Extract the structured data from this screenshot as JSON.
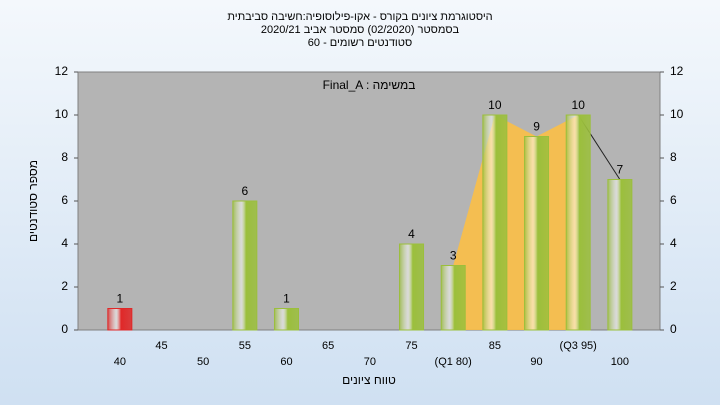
{
  "chart_data": {
    "type": "bar",
    "title": "היסטוגרמת ציונים בקורס - אקו-פילוסופיה:חשיבה סביבתית",
    "subtitle": "בסמסטר  (02/2020)  סמסטר אביב 2020/21",
    "subtitle2": "סטודנטים רשומים - 60",
    "annotation": "Final_A : במשימה",
    "xlabel": "טווח ציונים",
    "ylabel": "מספר סטודנטים",
    "categories": [
      "40",
      "45",
      "50",
      "55",
      "60",
      "65",
      "70",
      "75",
      "(Q1 80)",
      "85",
      "90",
      "(Q3 95)",
      "100"
    ],
    "values": [
      1,
      0,
      0,
      6,
      1,
      0,
      0,
      4,
      3,
      10,
      9,
      10,
      7
    ],
    "bar_colors": [
      "#e02828",
      "#9bbf3c",
      "#9bbf3c",
      "#9bbf3c",
      "#9bbf3c",
      "#9bbf3c",
      "#9bbf3c",
      "#9bbf3c",
      "#9bbf3c",
      "#9bbf3c",
      "#9bbf3c",
      "#9bbf3c",
      "#9bbf3c"
    ],
    "quartile_color": "#ffc040",
    "ylim": [
      0,
      12
    ],
    "yticks": [
      0,
      2,
      4,
      6,
      8,
      10,
      12
    ]
  }
}
